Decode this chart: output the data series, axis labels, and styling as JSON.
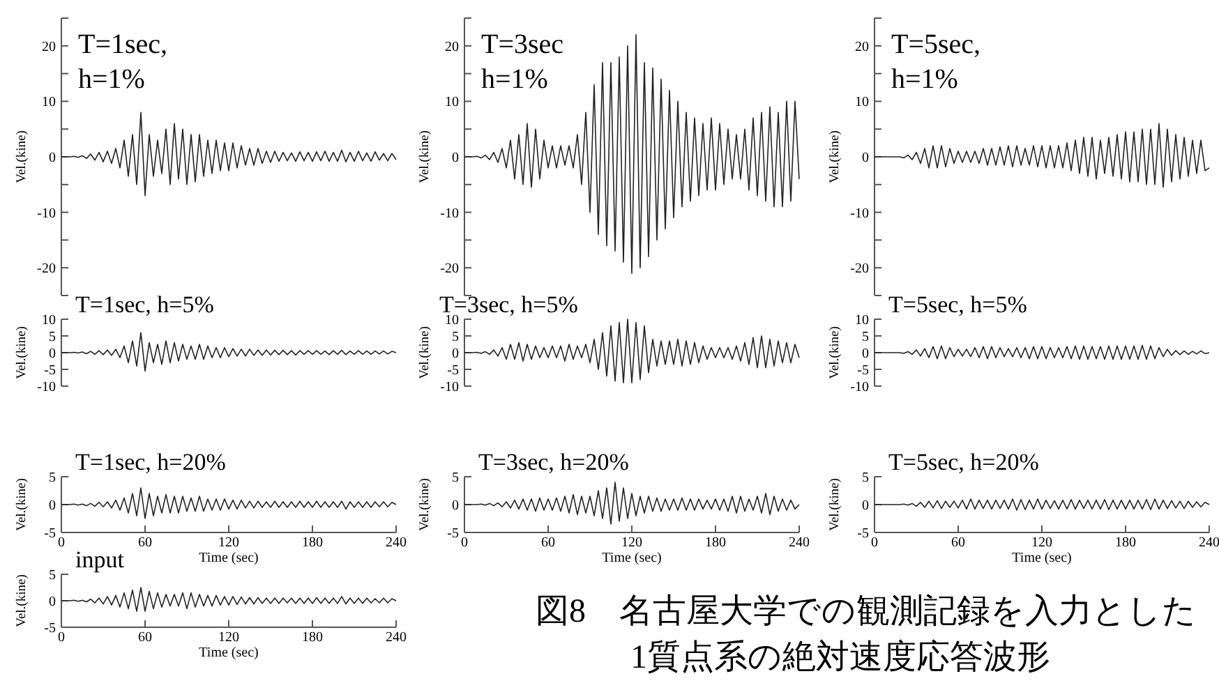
{
  "chart_data": [
    {
      "type": "line",
      "title": "T=1sec,\nh=1%",
      "ylabel": "Vel.(kine)",
      "xlim": [
        0,
        240
      ],
      "ylim": [
        -25,
        25
      ],
      "yticks": [
        {
          "value": -25,
          "label": null
        },
        -20,
        {
          "value": -15,
          "label": null
        },
        -10,
        {
          "value": -5,
          "label": null
        },
        0,
        {
          "value": 5,
          "label": null
        },
        10,
        {
          "value": 15,
          "label": null
        },
        20,
        {
          "value": 25,
          "label": null
        }
      ],
      "tick_labels": "y",
      "x": [
        0,
        3,
        6,
        9,
        12,
        15,
        18,
        21,
        24,
        27,
        30,
        33,
        36,
        39,
        42,
        45,
        48,
        51,
        54,
        57,
        60,
        63,
        66,
        69,
        72,
        75,
        78,
        81,
        84,
        87,
        90,
        93,
        96,
        99,
        102,
        105,
        108,
        111,
        114,
        117,
        120,
        123,
        126,
        129,
        132,
        135,
        138,
        141,
        144,
        147,
        150,
        153,
        156,
        159,
        162,
        165,
        168,
        171,
        174,
        177,
        180,
        183,
        186,
        189,
        192,
        195,
        198,
        201,
        204,
        207,
        210,
        213,
        216,
        219,
        222,
        225,
        228,
        231,
        234,
        237,
        240
      ],
      "series": [
        {
          "color": "#222222",
          "values": [
            0,
            0,
            0,
            0.1,
            -0.1,
            0.2,
            -0.3,
            0.5,
            -0.6,
            0.8,
            -0.9,
            1,
            -1.2,
            1.5,
            -2,
            3,
            -3.5,
            4,
            -5,
            8,
            -7,
            4,
            -3.5,
            3,
            -3,
            5,
            -5,
            6,
            -4,
            5,
            -5,
            4,
            -4.5,
            4,
            -3.5,
            3,
            -3,
            3,
            -2.5,
            2.5,
            -2.5,
            2.5,
            -2,
            2,
            -1.5,
            1.5,
            -1.5,
            1.5,
            -1.2,
            1,
            -1,
            1,
            -0.8,
            0.8,
            -0.7,
            0.7,
            -0.8,
            0.9,
            -0.7,
            0.8,
            -0.8,
            0.9,
            -0.7,
            1,
            -0.8,
            0.8,
            -0.8,
            1.2,
            -0.9,
            0.8,
            -0.8,
            1,
            -0.7,
            0.7,
            -0.8,
            0.9,
            -0.6,
            0.6,
            -0.7,
            0.6,
            -0.5
          ]
        }
      ]
    },
    {
      "type": "line",
      "title": "T=3sec\nh=1%",
      "ylabel": "Vel.(kine)",
      "xlim": [
        0,
        240
      ],
      "ylim": [
        -25,
        25
      ],
      "yticks": [
        {
          "value": -25,
          "label": null
        },
        -20,
        {
          "value": -15,
          "label": null
        },
        -10,
        {
          "value": -5,
          "label": null
        },
        0,
        {
          "value": 5,
          "label": null
        },
        10,
        {
          "value": 15,
          "label": null
        },
        20,
        {
          "value": 25,
          "label": null
        }
      ],
      "tick_labels": "y",
      "x": [
        0,
        3,
        6,
        9,
        12,
        15,
        18,
        21,
        24,
        27,
        30,
        33,
        36,
        39,
        42,
        45,
        48,
        51,
        54,
        57,
        60,
        63,
        66,
        69,
        72,
        75,
        78,
        81,
        84,
        87,
        90,
        93,
        96,
        99,
        102,
        105,
        108,
        111,
        114,
        117,
        120,
        123,
        126,
        129,
        132,
        135,
        138,
        141,
        144,
        147,
        150,
        153,
        156,
        159,
        162,
        165,
        168,
        171,
        174,
        177,
        180,
        183,
        186,
        189,
        192,
        195,
        198,
        201,
        204,
        207,
        210,
        213,
        216,
        219,
        222,
        225,
        228,
        231,
        234,
        237,
        240
      ],
      "series": [
        {
          "color": "#222222",
          "values": [
            0,
            0,
            0,
            0.1,
            -0.2,
            0.3,
            -0.5,
            0.8,
            -1,
            1.5,
            -2,
            3,
            -4,
            4,
            -5,
            6,
            -5.5,
            5,
            -4,
            3,
            -2,
            2,
            -2,
            2,
            -1.5,
            2,
            -2,
            4,
            -5,
            8,
            -10,
            13,
            -14,
            17,
            -16,
            17,
            -17,
            18,
            -19,
            20,
            -21,
            22,
            -20,
            17,
            -18,
            16,
            -15,
            14,
            -13,
            12,
            -11,
            10,
            -9,
            8,
            -8,
            7,
            -7,
            6,
            -6,
            7,
            -6,
            6,
            -5,
            5,
            -4,
            4,
            -4,
            5,
            -6,
            7,
            -7,
            8,
            -8,
            9,
            -9,
            8,
            -9,
            10,
            -8,
            10,
            -4
          ]
        }
      ]
    },
    {
      "type": "line",
      "title": "T=5sec,\nh=1%",
      "ylabel": "Vel.(kine)",
      "xlim": [
        0,
        240
      ],
      "ylim": [
        -25,
        25
      ],
      "yticks": [
        {
          "value": -25,
          "label": null
        },
        -20,
        {
          "value": -15,
          "label": null
        },
        -10,
        {
          "value": -5,
          "label": null
        },
        0,
        {
          "value": 5,
          "label": null
        },
        10,
        {
          "value": 15,
          "label": null
        },
        20,
        {
          "value": 25,
          "label": null
        }
      ],
      "tick_labels": "y",
      "x": [
        0,
        3,
        6,
        9,
        12,
        15,
        18,
        21,
        24,
        27,
        30,
        33,
        36,
        39,
        42,
        45,
        48,
        51,
        54,
        57,
        60,
        63,
        66,
        69,
        72,
        75,
        78,
        81,
        84,
        87,
        90,
        93,
        96,
        99,
        102,
        105,
        108,
        111,
        114,
        117,
        120,
        123,
        126,
        129,
        132,
        135,
        138,
        141,
        144,
        147,
        150,
        153,
        156,
        159,
        162,
        165,
        168,
        171,
        174,
        177,
        180,
        183,
        186,
        189,
        192,
        195,
        198,
        201,
        204,
        207,
        210,
        213,
        216,
        219,
        222,
        225,
        228,
        231,
        234,
        237,
        240
      ],
      "series": [
        {
          "color": "#222222",
          "values": [
            0,
            0,
            0,
            0,
            0,
            0,
            0,
            -0.2,
            0.3,
            -0.5,
            0.8,
            -1.2,
            1.5,
            -2,
            2,
            -2,
            2,
            -1.8,
            1.5,
            -1.2,
            1,
            -1,
            1,
            -1,
            1,
            -1.2,
            1.5,
            -1.5,
            1.5,
            -1.5,
            1.8,
            -1.5,
            2,
            -1.8,
            2,
            -1.5,
            1.5,
            -1.5,
            2,
            -1.8,
            2,
            -2,
            2,
            -2,
            2,
            -2,
            2.5,
            -2.5,
            3,
            -3,
            3.5,
            -3.5,
            3.5,
            -4,
            3,
            -3,
            3.5,
            -3.5,
            4,
            -4,
            4.5,
            -4.5,
            4.5,
            -4.5,
            5,
            -5,
            5,
            -5,
            6,
            -5.5,
            5,
            -4.5,
            4,
            -4,
            3.5,
            -3.5,
            3,
            -3,
            3,
            -2.5,
            -2
          ]
        }
      ]
    },
    {
      "type": "line",
      "title": "T=1sec, h=5%",
      "ylabel": "Vel.(kine)",
      "xlim": [
        0,
        240
      ],
      "ylim": [
        -10,
        10
      ],
      "yticks": [
        -10,
        -5,
        0,
        5,
        10
      ],
      "tick_labels": "y",
      "x": [
        0,
        3,
        6,
        9,
        12,
        15,
        18,
        21,
        24,
        27,
        30,
        33,
        36,
        39,
        42,
        45,
        48,
        51,
        54,
        57,
        60,
        63,
        66,
        69,
        72,
        75,
        78,
        81,
        84,
        87,
        90,
        93,
        96,
        99,
        102,
        105,
        108,
        111,
        114,
        117,
        120,
        123,
        126,
        129,
        132,
        135,
        138,
        141,
        144,
        147,
        150,
        153,
        156,
        159,
        162,
        165,
        168,
        171,
        174,
        177,
        180,
        183,
        186,
        189,
        192,
        195,
        198,
        201,
        204,
        207,
        210,
        213,
        216,
        219,
        222,
        225,
        228,
        231,
        234,
        237,
        240
      ],
      "series": [
        {
          "color": "#222222",
          "values": [
            0,
            0,
            0,
            0.1,
            -0.1,
            0.2,
            -0.3,
            0.4,
            -0.5,
            0.6,
            -0.6,
            0.8,
            -0.8,
            1,
            -1.5,
            2,
            -3,
            3.5,
            -4,
            6,
            -5.5,
            3,
            -3,
            2.5,
            -3.5,
            3.5,
            -3,
            3,
            -2.5,
            2.5,
            -2,
            2,
            -2,
            2.5,
            -2,
            2,
            -1.5,
            1.5,
            -1.5,
            1.5,
            -1.2,
            1.2,
            -1,
            1,
            -1,
            1,
            -0.8,
            0.8,
            -0.8,
            0.8,
            -0.7,
            0.7,
            -0.6,
            0.7,
            -0.6,
            0.6,
            -0.7,
            0.6,
            -0.5,
            0.6,
            -0.5,
            0.6,
            -0.5,
            0.5,
            -0.6,
            0.6,
            -0.5,
            0.7,
            -0.6,
            0.5,
            -0.5,
            0.6,
            -0.5,
            0.5,
            -0.5,
            0.5,
            -0.4,
            0.5,
            -0.4,
            0.4,
            0
          ]
        }
      ]
    },
    {
      "type": "line",
      "title": "T=3sec, h=5%",
      "ylabel": "Vel.(kine)",
      "xlim": [
        0,
        240
      ],
      "ylim": [
        -10,
        10
      ],
      "yticks": [
        -10,
        -5,
        0,
        5,
        10
      ],
      "tick_labels": "y",
      "x": [
        0,
        3,
        6,
        9,
        12,
        15,
        18,
        21,
        24,
        27,
        30,
        33,
        36,
        39,
        42,
        45,
        48,
        51,
        54,
        57,
        60,
        63,
        66,
        69,
        72,
        75,
        78,
        81,
        84,
        87,
        90,
        93,
        96,
        99,
        102,
        105,
        108,
        111,
        114,
        117,
        120,
        123,
        126,
        129,
        132,
        135,
        138,
        141,
        144,
        147,
        150,
        153,
        156,
        159,
        162,
        165,
        168,
        171,
        174,
        177,
        180,
        183,
        186,
        189,
        192,
        195,
        198,
        201,
        204,
        207,
        210,
        213,
        216,
        219,
        222,
        225,
        228,
        231,
        234,
        237,
        240
      ],
      "series": [
        {
          "color": "#222222",
          "values": [
            0,
            0,
            0,
            0.1,
            -0.2,
            0.3,
            -0.5,
            0.8,
            -1,
            1.5,
            -2,
            2.5,
            -2,
            3,
            -2.5,
            2.5,
            -2,
            2,
            -1.5,
            1.5,
            -1.5,
            2,
            -1.5,
            2,
            -2.5,
            2.5,
            -2,
            2,
            -1.5,
            2.5,
            -3,
            4,
            -5,
            6,
            -7,
            8,
            -8.5,
            9,
            -9,
            10,
            -9,
            9,
            -8,
            8,
            -6,
            4,
            -4,
            3.5,
            -3.5,
            3.5,
            -3.5,
            4,
            -4,
            3.5,
            -3.5,
            3,
            -3,
            2,
            -2,
            1.5,
            -1.5,
            1.5,
            -1.5,
            1.5,
            -2,
            2,
            -2.5,
            3,
            -3.5,
            4.5,
            -4.5,
            5,
            -4.5,
            4,
            -4,
            3.5,
            -3,
            3,
            -3,
            2.5,
            -1.5
          ]
        }
      ]
    },
    {
      "type": "line",
      "title": "T=5sec, h=5%",
      "ylabel": "Vel.(kine)",
      "xlim": [
        0,
        240
      ],
      "ylim": [
        -10,
        10
      ],
      "yticks": [
        -10,
        -5,
        0,
        5,
        10
      ],
      "tick_labels": "y",
      "x": [
        0,
        3,
        6,
        9,
        12,
        15,
        18,
        21,
        24,
        27,
        30,
        33,
        36,
        39,
        42,
        45,
        48,
        51,
        54,
        57,
        60,
        63,
        66,
        69,
        72,
        75,
        78,
        81,
        84,
        87,
        90,
        93,
        96,
        99,
        102,
        105,
        108,
        111,
        114,
        117,
        120,
        123,
        126,
        129,
        132,
        135,
        138,
        141,
        144,
        147,
        150,
        153,
        156,
        159,
        162,
        165,
        168,
        171,
        174,
        177,
        180,
        183,
        186,
        189,
        192,
        195,
        198,
        201,
        204,
        207,
        210,
        213,
        216,
        219,
        222,
        225,
        228,
        231,
        234,
        237,
        240
      ],
      "series": [
        {
          "color": "#222222",
          "values": [
            0,
            0,
            0,
            0,
            0,
            0,
            0,
            -0.2,
            0.3,
            -0.5,
            0.8,
            -1,
            1.2,
            -1.5,
            1.8,
            -1.8,
            2,
            -1.8,
            1.5,
            -1.2,
            1,
            -1,
            1,
            -1.2,
            1.5,
            -1.5,
            1.8,
            -1.8,
            1.8,
            -1.5,
            1.5,
            -1.2,
            1.2,
            -1.2,
            1.5,
            -1.5,
            1.5,
            -1.8,
            1.8,
            -1.8,
            1.8,
            -1.8,
            1.5,
            -1.5,
            1.5,
            -1.5,
            1.8,
            -1.8,
            2,
            -2,
            2,
            -2,
            1.8,
            -1.8,
            1.8,
            -2,
            2,
            -2,
            2,
            -2,
            2,
            -2,
            2,
            -2,
            2.2,
            -2,
            2,
            -1.8,
            1.5,
            -1.2,
            1,
            -0.8,
            0.6,
            -0.6,
            0.5,
            -0.5,
            0.4,
            -0.4,
            0.5,
            -0.3,
            0
          ]
        }
      ]
    },
    {
      "type": "line",
      "title": "T=1sec, h=20%",
      "ylabel": "Vel.(kine)",
      "xlabel": "Time (sec)",
      "xlim": [
        0,
        240
      ],
      "xticks": [
        0,
        60,
        120,
        180,
        240
      ],
      "ylim": [
        -5,
        5
      ],
      "yticks": [
        -5,
        0,
        5
      ],
      "x": [
        0,
        3,
        6,
        9,
        12,
        15,
        18,
        21,
        24,
        27,
        30,
        33,
        36,
        39,
        42,
        45,
        48,
        51,
        54,
        57,
        60,
        63,
        66,
        69,
        72,
        75,
        78,
        81,
        84,
        87,
        90,
        93,
        96,
        99,
        102,
        105,
        108,
        111,
        114,
        117,
        120,
        123,
        126,
        129,
        132,
        135,
        138,
        141,
        144,
        147,
        150,
        153,
        156,
        159,
        162,
        165,
        168,
        171,
        174,
        177,
        180,
        183,
        186,
        189,
        192,
        195,
        198,
        201,
        204,
        207,
        210,
        213,
        216,
        219,
        222,
        225,
        228,
        231,
        234,
        237,
        240
      ],
      "series": [
        {
          "color": "#222222",
          "values": [
            0,
            0,
            0,
            0.1,
            -0.1,
            0.1,
            -0.2,
            0.2,
            -0.3,
            0.4,
            -0.4,
            0.5,
            -0.6,
            0.8,
            -1,
            1.2,
            -1.5,
            2,
            -2,
            3,
            -2.5,
            2,
            -2,
            1.5,
            -1.5,
            1.8,
            -1.5,
            1.5,
            -1.5,
            1.5,
            -1.2,
            1.2,
            -1.2,
            1.5,
            -1.2,
            1,
            -1,
            1,
            -1,
            1,
            -0.8,
            0.8,
            -0.8,
            0.8,
            -0.6,
            0.6,
            -0.6,
            0.6,
            -0.5,
            0.5,
            -0.5,
            0.6,
            -0.5,
            0.5,
            -0.5,
            0.5,
            -0.5,
            0.6,
            -0.5,
            0.5,
            -0.5,
            0.6,
            -0.5,
            0.5,
            -0.5,
            0.5,
            -0.5,
            0.6,
            -0.8,
            0.5,
            -0.5,
            0.5,
            -0.5,
            0.5,
            -0.5,
            0.5,
            -0.4,
            0.5,
            -0.4,
            0.4,
            0
          ]
        }
      ]
    },
    {
      "type": "line",
      "title": "T=3sec, h=20%",
      "ylabel": "Vel.(kine)",
      "xlabel": "Time (sec)",
      "xlim": [
        0,
        240
      ],
      "xticks": [
        0,
        60,
        120,
        180,
        240
      ],
      "ylim": [
        -5,
        5
      ],
      "yticks": [
        -5,
        0,
        5
      ],
      "x": [
        0,
        3,
        6,
        9,
        12,
        15,
        18,
        21,
        24,
        27,
        30,
        33,
        36,
        39,
        42,
        45,
        48,
        51,
        54,
        57,
        60,
        63,
        66,
        69,
        72,
        75,
        78,
        81,
        84,
        87,
        90,
        93,
        96,
        99,
        102,
        105,
        108,
        111,
        114,
        117,
        120,
        123,
        126,
        129,
        132,
        135,
        138,
        141,
        144,
        147,
        150,
        153,
        156,
        159,
        162,
        165,
        168,
        171,
        174,
        177,
        180,
        183,
        186,
        189,
        192,
        195,
        198,
        201,
        204,
        207,
        210,
        213,
        216,
        219,
        222,
        225,
        228,
        231,
        234,
        237,
        240
      ],
      "series": [
        {
          "color": "#222222",
          "values": [
            0,
            0,
            0,
            0,
            0.1,
            -0.1,
            0.2,
            -0.2,
            0.3,
            -0.4,
            0.5,
            -0.6,
            0.8,
            -0.8,
            1,
            -1,
            1,
            -1.2,
            1.2,
            -1,
            1,
            -1,
            1.2,
            -1.2,
            1.5,
            -1.5,
            1.8,
            -1.8,
            1.5,
            -1.5,
            1.5,
            -2,
            2.5,
            -2.5,
            3,
            -3.5,
            4,
            -3,
            3,
            -2.5,
            2,
            -2,
            1.5,
            -1.5,
            1.5,
            -1.2,
            1.2,
            -1.2,
            1,
            -1,
            1,
            -1,
            1.2,
            -1,
            1,
            -1,
            1,
            -0.8,
            0.8,
            -0.8,
            1,
            -1,
            1,
            -1.2,
            1.5,
            -1.5,
            1.5,
            -1.2,
            1,
            -1,
            1.5,
            -1.5,
            2,
            -1.8,
            1.5,
            -1.2,
            1,
            -1,
            0.8,
            -0.8,
            0
          ]
        }
      ]
    },
    {
      "type": "line",
      "title": "T=5sec, h=20%",
      "ylabel": "Vel.(kine)",
      "xlabel": "Time (sec)",
      "xlim": [
        0,
        240
      ],
      "xticks": [
        0,
        60,
        120,
        180,
        240
      ],
      "ylim": [
        -5,
        5
      ],
      "yticks": [
        -5,
        0,
        5
      ],
      "x": [
        0,
        3,
        6,
        9,
        12,
        15,
        18,
        21,
        24,
        27,
        30,
        33,
        36,
        39,
        42,
        45,
        48,
        51,
        54,
        57,
        60,
        63,
        66,
        69,
        72,
        75,
        78,
        81,
        84,
        87,
        90,
        93,
        96,
        99,
        102,
        105,
        108,
        111,
        114,
        117,
        120,
        123,
        126,
        129,
        132,
        135,
        138,
        141,
        144,
        147,
        150,
        153,
        156,
        159,
        162,
        165,
        168,
        171,
        174,
        177,
        180,
        183,
        186,
        189,
        192,
        195,
        198,
        201,
        204,
        207,
        210,
        213,
        216,
        219,
        222,
        225,
        228,
        231,
        234,
        237,
        240
      ],
      "series": [
        {
          "color": "#222222",
          "values": [
            0,
            0,
            0,
            0,
            0,
            0,
            0,
            0.1,
            -0.1,
            0.2,
            -0.3,
            0.4,
            -0.5,
            0.6,
            -0.6,
            0.7,
            -0.7,
            0.6,
            -0.5,
            0.6,
            -0.6,
            0.8,
            -0.8,
            1,
            -0.8,
            0.8,
            -0.7,
            0.8,
            -0.8,
            0.8,
            -0.7,
            0.8,
            -0.8,
            1,
            -1,
            0.9,
            -0.9,
            0.8,
            -0.8,
            1,
            -0.8,
            0.8,
            -0.7,
            0.7,
            -0.8,
            0.8,
            -0.8,
            0.9,
            -0.8,
            0.8,
            -0.7,
            0.8,
            -0.8,
            0.8,
            -0.8,
            0.9,
            -0.9,
            0.8,
            -0.8,
            0.8,
            -0.8,
            0.8,
            -0.8,
            0.8,
            -0.8,
            0.9,
            -0.9,
            1,
            -0.8,
            0.8,
            -0.7,
            0.7,
            -0.6,
            0.6,
            -0.7,
            0.6,
            -0.5,
            0.5,
            -0.4,
            0.4,
            0
          ]
        }
      ]
    },
    {
      "type": "line",
      "title": "input",
      "ylabel": "Vel.(kine)",
      "xlabel": "Time (sec)",
      "xlim": [
        0,
        240
      ],
      "xticks": [
        0,
        60,
        120,
        180,
        240
      ],
      "ylim": [
        -5,
        5
      ],
      "yticks": [
        -5,
        0,
        5
      ],
      "annotations": [
        "図8　名古屋大学での観測記録を入力とした\n1質点系の絶対速度応答波形"
      ],
      "x": [
        0,
        3,
        6,
        9,
        12,
        15,
        18,
        21,
        24,
        27,
        30,
        33,
        36,
        39,
        42,
        45,
        48,
        51,
        54,
        57,
        60,
        63,
        66,
        69,
        72,
        75,
        78,
        81,
        84,
        87,
        90,
        93,
        96,
        99,
        102,
        105,
        108,
        111,
        114,
        117,
        120,
        123,
        126,
        129,
        132,
        135,
        138,
        141,
        144,
        147,
        150,
        153,
        156,
        159,
        162,
        165,
        168,
        171,
        174,
        177,
        180,
        183,
        186,
        189,
        192,
        195,
        198,
        201,
        204,
        207,
        210,
        213,
        216,
        219,
        222,
        225,
        228,
        231,
        234,
        237,
        240
      ],
      "series": [
        {
          "color": "#222222",
          "values": [
            0,
            0,
            0,
            0.1,
            -0.1,
            0.1,
            -0.2,
            0.3,
            -0.4,
            0.5,
            -0.6,
            0.8,
            -0.8,
            1,
            -1.2,
            1.5,
            -1.5,
            2,
            -2,
            2.5,
            -2,
            1.8,
            -1.5,
            1.5,
            -1.2,
            1.2,
            -1,
            1.2,
            -1,
            1.5,
            -1.5,
            1.5,
            -1.2,
            1.2,
            -1,
            1,
            -1,
            1,
            -0.8,
            0.8,
            -0.8,
            0.8,
            -0.7,
            0.7,
            -0.6,
            0.6,
            -0.6,
            0.6,
            -0.5,
            0.5,
            -0.5,
            0.5,
            -0.5,
            0.5,
            -0.4,
            0.5,
            -0.5,
            0.5,
            -0.5,
            0.5,
            -0.5,
            0.6,
            -0.5,
            0.5,
            -0.5,
            0.5,
            -0.5,
            0.8,
            -0.6,
            0.5,
            -0.5,
            0.5,
            -0.5,
            0.5,
            -0.4,
            0.4,
            -0.4,
            0.5,
            -0.4,
            0.4,
            0
          ]
        }
      ]
    }
  ]
}
